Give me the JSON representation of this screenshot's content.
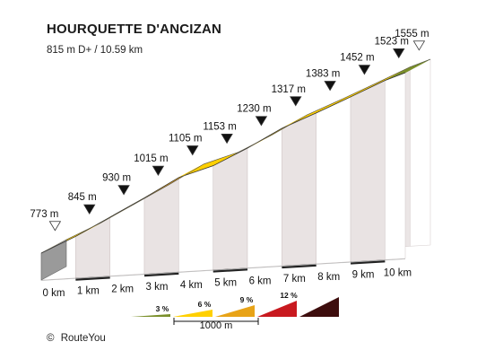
{
  "header": {
    "title": "HOURQUETTE D'ANCIZAN",
    "subtitle": "815 m D+ / 10.59 km"
  },
  "chart_data": {
    "type": "area",
    "title": "HOURQUETTE D'ANCIZAN",
    "subtitle": "815 m D+ / 10.59 km",
    "x_unit": "km",
    "y_unit": "m",
    "x": [
      0,
      1,
      2,
      3,
      4,
      5,
      6,
      7,
      8,
      9,
      10,
      10.59
    ],
    "elevation_m": [
      773,
      845,
      930,
      1015,
      1105,
      1153,
      1230,
      1317,
      1383,
      1452,
      1523,
      1555
    ],
    "elevation_labels": [
      "773 m",
      "845 m",
      "930 m",
      "1015 m",
      "1105 m",
      "1153 m",
      "1230 m",
      "1317 m",
      "1383 m",
      "1452 m",
      "1523 m",
      "1555 m"
    ],
    "x_tick_labels": [
      "0 km",
      "1 km",
      "2 km",
      "3 km",
      "4 km",
      "5 km",
      "6 km",
      "7 km",
      "8 km",
      "9 km",
      "10 km"
    ],
    "segment_gradient_class": [
      "6 %",
      "6 %",
      "6 %",
      "9 %",
      "6 %",
      "6 %",
      "6 %",
      "6 %",
      "6 %",
      "6 %",
      "3 %"
    ],
    "legend": {
      "items": [
        {
          "label": "3 %",
          "color": "#7a8f2a"
        },
        {
          "label": "6 %",
          "color": "#ffd000"
        },
        {
          "label": "9 %",
          "color": "#e8a317"
        },
        {
          "label": "12 %",
          "color": "#c8191f"
        },
        {
          "label": "",
          "color": "#3d0d0d"
        }
      ],
      "scale_label": "1000 m"
    }
  },
  "credit": {
    "symbol": "©",
    "text": "RouteYou"
  }
}
